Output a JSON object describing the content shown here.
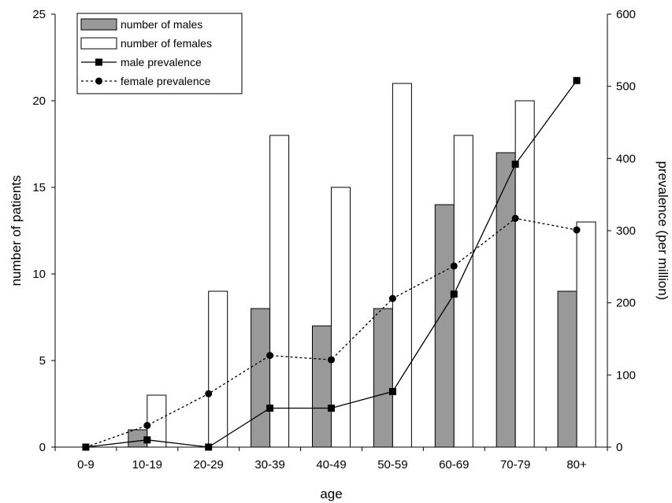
{
  "chart_data": {
    "type": "bar",
    "categories": [
      "0-9",
      "10-19",
      "20-29",
      "30-39",
      "40-49",
      "50-59",
      "60-69",
      "70-79",
      "80+"
    ],
    "xlabel": "age",
    "ylabel": "number of patients",
    "y2label": "prevalence (per million)",
    "ylim": [
      0,
      25
    ],
    "y2lim": [
      0,
      600
    ],
    "yticks": [
      "0",
      "5",
      "10",
      "15",
      "20",
      "25"
    ],
    "y2ticks": [
      "0",
      "100",
      "200",
      "300",
      "400",
      "500",
      "600"
    ],
    "grid": false,
    "legend_position": "top-left",
    "series": [
      {
        "name": "number of males",
        "kind": "bar",
        "axis": "left",
        "color": "#999999",
        "values": [
          0,
          1,
          0,
          8,
          7,
          8,
          14,
          17,
          9
        ]
      },
      {
        "name": "number of females",
        "kind": "bar",
        "axis": "left",
        "color": "#ffffff",
        "values": [
          0,
          3,
          9,
          18,
          15,
          21,
          18,
          20,
          13
        ]
      },
      {
        "name": "male prevalence",
        "kind": "line",
        "axis": "right",
        "marker": "square",
        "dash": "solid",
        "values": [
          0,
          10,
          0,
          54,
          54,
          77,
          212,
          392,
          508
        ]
      },
      {
        "name": "female prevalence",
        "kind": "line",
        "axis": "right",
        "marker": "circle",
        "dash": "dotted",
        "values": [
          0,
          30,
          74,
          127,
          121,
          206,
          251,
          317,
          301
        ]
      }
    ]
  }
}
